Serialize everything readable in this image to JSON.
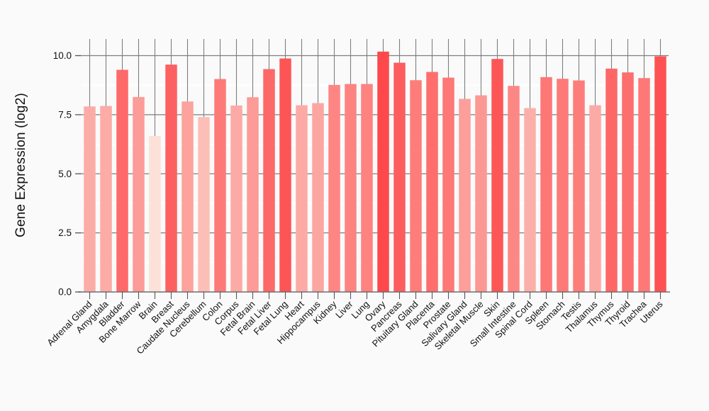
{
  "page": {
    "background": "#fafafa"
  },
  "chart_data": {
    "type": "bar",
    "title": "",
    "xlabel": "",
    "ylabel": "Gene Expression (log2)",
    "ylim": [
      0,
      10.7
    ],
    "yticks": [
      0.0,
      2.5,
      5.0,
      7.5,
      10.0
    ],
    "ytick_labels": [
      "0.0",
      "2.5",
      "5.0",
      "7.5",
      "10.0"
    ],
    "minor_gridlines": [
      1.25,
      3.75,
      6.25,
      8.75
    ],
    "grid": "dark-gray major horizontal + per-category vertical lines behind bars; white minor horizontal lines",
    "legend": "none",
    "categories": [
      "Adrenal Gland",
      "Amygdala",
      "Bladder",
      "Bone Marrow",
      "Brain",
      "Breast",
      "Caudate Nucleus",
      "Cerebellum",
      "Colon",
      "Corpus",
      "Fetal Brain",
      "Fetal Liver",
      "Fetal Lung",
      "Heart",
      "Hippocampus",
      "Kidney",
      "Liver",
      "Lung",
      "Ovary",
      "Pancreas",
      "Pituitary Gland",
      "Placenta",
      "Prostate",
      "Salivary Gland",
      "Skeletal Muscle",
      "Skin",
      "Small Intestine",
      "Spinal Cord",
      "Spleen",
      "Stomach",
      "Testis",
      "Thalamus",
      "Thymus",
      "Thyroid",
      "Trachea",
      "Uterus"
    ],
    "values": [
      7.85,
      7.87,
      9.4,
      8.25,
      6.6,
      9.62,
      8.06,
      7.4,
      9.01,
      7.89,
      8.24,
      9.43,
      9.88,
      7.9,
      7.99,
      8.76,
      8.8,
      8.8,
      10.17,
      9.7,
      8.96,
      9.31,
      9.07,
      8.17,
      8.32,
      9.86,
      8.72,
      7.78,
      9.09,
      9.02,
      8.95,
      7.9,
      9.45,
      9.29,
      9.05,
      9.97
    ],
    "color_scale": {
      "low_value": 6.6,
      "high_value": 10.17,
      "low_color": "#fce1d8",
      "high_color": "#fd494b"
    }
  },
  "style": {
    "grid_dark": "#7e7e7e",
    "grid_white": "#ffffff",
    "axis_color": "#6e6e6e",
    "tick_color": "#555555",
    "text_color": "#111111"
  }
}
